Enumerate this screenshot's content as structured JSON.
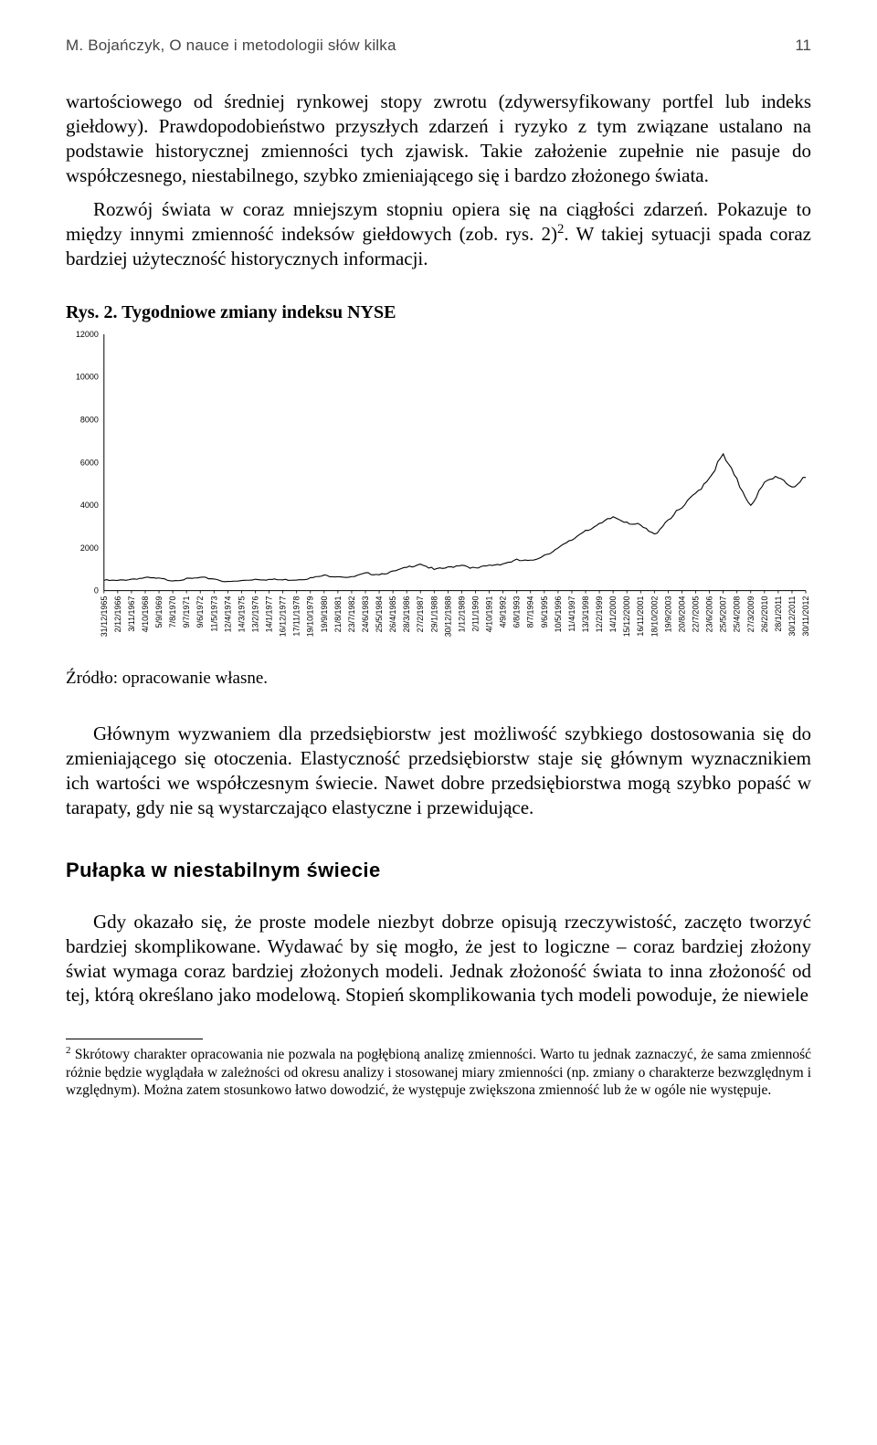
{
  "runningHead": {
    "title": "M. Bojańczyk, O nauce i metodologii słów kilka",
    "pageNumber": "11"
  },
  "paragraphs": {
    "p1": "wartościowego od średniej rynkowej stopy zwrotu (zdywersyfikowany portfel lub indeks giełdowy). Prawdopodobieństwo przyszłych zdarzeń i ryzyko z tym związane ustalano na podstawie historycznej zmienności tych zjawisk. Takie założenie zupełnie nie pasuje do współczesnego, niestabilnego, szybko zmieniającego się i bardzo złożonego świata.",
    "p2a": "Rozwój świata w coraz mniejszym stopniu opiera się na ciągłości zdarzeń. Pokazuje to między innymi zmienność indeksów giełdowych (zob. rys. 2)",
    "p2sup": "2",
    "p2b": ". W takiej sytuacji spada coraz bardziej użyteczność historycznych informacji.",
    "p3": "Głównym wyzwaniem dla przedsiębiorstw jest możliwość szybkiego dostosowania się do zmieniającego się otoczenia. Elastyczność przedsiębiorstw staje się głównym wyznacznikiem ich wartości we współczesnym świecie. Nawet dobre przedsiębiorstwa mogą szybko popaść w tarapaty, gdy nie są wystarczająco elastyczne i przewidujące.",
    "p4": "Gdy okazało się, że proste modele niezbyt dobrze opisują rzeczywistość, zaczęto tworzyć bardziej skomplikowane. Wydawać by się mogło, że jest to logiczne – coraz bardziej złożony świat wymaga coraz bardziej złożonych modeli. Jednak złożoność świata to inna złożoność od tej, którą określano jako modelową. Stopień skomplikowania tych modeli powoduje, że niewiele"
  },
  "figure": {
    "captionPrefix": "Rys. 2. ",
    "captionTitle": "Tygodniowe zmiany indeksu NYSE",
    "source": "Źródło: opracowanie własne.",
    "chart": {
      "type": "line",
      "background_color": "#ffffff",
      "line_color": "#000000",
      "line_width": 1.1,
      "axis_color": "#000000",
      "ylim": [
        0,
        12000
      ],
      "yticks": [
        0,
        2000,
        4000,
        6000,
        8000,
        10000,
        12000
      ],
      "xlabels": [
        "31/12/1965",
        "2/12/1966",
        "3/11/1967",
        "4/10/1968",
        "5/9/1969",
        "7/8/1970",
        "9/7/1971",
        "9/6/1972",
        "11/5/1973",
        "12/4/1974",
        "14/3/1975",
        "13/2/1976",
        "14/1/1977",
        "16/12/1977",
        "17/11/1978",
        "19/10/1979",
        "19/9/1980",
        "21/8/1981",
        "23/7/1982",
        "24/6/1983",
        "25/5/1984",
        "26/4/1985",
        "28/3/1986",
        "27/2/1987",
        "29/1/1988",
        "30/12/1988",
        "1/12/1989",
        "2/11/1990",
        "4/10/1991",
        "4/9/1992",
        "6/8/1993",
        "8/7/1994",
        "9/6/1995",
        "10/5/1996",
        "11/4/1997",
        "13/3/1998",
        "12/2/1999",
        "14/1/2000",
        "15/12/2000",
        "16/11/2001",
        "18/10/2002",
        "19/9/2003",
        "20/8/2004",
        "22/7/2005",
        "23/6/2006",
        "25/5/2007",
        "25/4/2008",
        "27/3/2009",
        "26/2/2010",
        "28/1/2011",
        "30/12/2011",
        "30/11/2012"
      ],
      "values": [
        500,
        480,
        560,
        620,
        580,
        500,
        560,
        620,
        580,
        420,
        480,
        560,
        540,
        520,
        540,
        600,
        720,
        700,
        640,
        820,
        800,
        900,
        1100,
        1300,
        1000,
        1100,
        1250,
        1050,
        1200,
        1300,
        1450,
        1400,
        1700,
        2000,
        2400,
        2900,
        3100,
        3500,
        3300,
        3050,
        2650,
        3400,
        3900,
        4600,
        5400,
        6400,
        5200,
        4100,
        5050,
        5450,
        4950,
        5300
      ],
      "label_fontsize": 9
    }
  },
  "sectionHead": "Pułapka w niestabilnym świecie",
  "footnote": {
    "marker": "2",
    "text": " Skrótowy charakter opracowania nie pozwala na pogłębioną analizę zmienności. Warto tu jednak zaznaczyć, że sama zmienność różnie będzie wyglądała w zależności od okresu analizy i stosowanej miary zmienności (np. zmiany o charakterze bezwzględnym i względnym). Można zatem stosunkowo łatwo dowodzić, że występuje zwiększona zmienność lub że w ogóle nie występuje."
  }
}
